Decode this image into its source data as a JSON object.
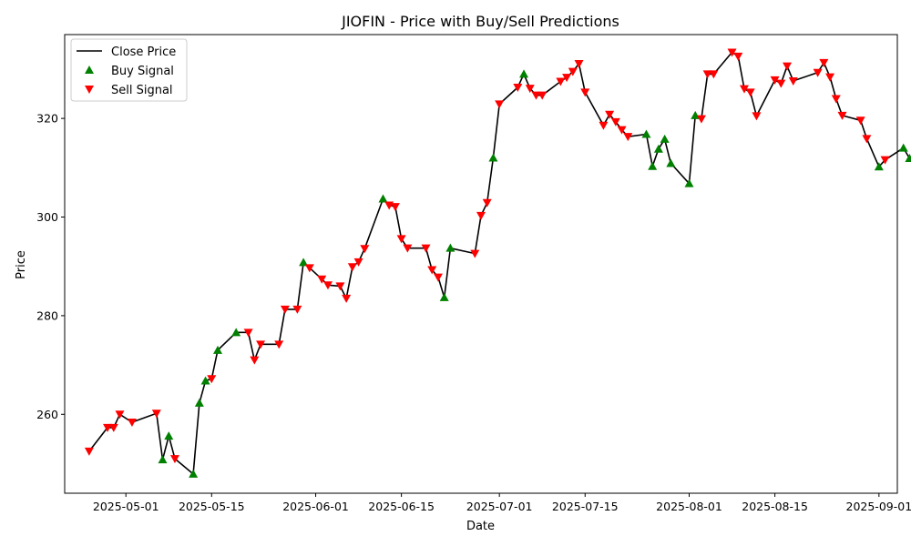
{
  "chart_data": {
    "type": "line",
    "title": "JIOFIN - Price with Buy/Sell Predictions",
    "xlabel": "Date",
    "ylabel": "Price",
    "xlim": [
      "2025-04-21",
      "2025-09-04"
    ],
    "ylim": [
      244,
      337
    ],
    "x_ticks": [
      "2025-05-01",
      "2025-05-15",
      "2025-06-01",
      "2025-06-15",
      "2025-07-01",
      "2025-07-15",
      "2025-08-01",
      "2025-08-15",
      "2025-09-01"
    ],
    "y_ticks": [
      260,
      280,
      300,
      320
    ],
    "grid": false,
    "legend_position": "upper-left",
    "legend": [
      "Close Price",
      "Buy Signal",
      "Sell Signal"
    ],
    "colors": {
      "line": "#000000",
      "buy": "#008000",
      "sell": "#ff0000"
    },
    "series": [
      {
        "name": "Close Price",
        "points": [
          [
            "2025-04-25",
            252.5
          ],
          [
            "2025-04-28",
            257.3
          ],
          [
            "2025-04-29",
            257.3
          ],
          [
            "2025-04-30",
            260.0
          ],
          [
            "2025-05-02",
            258.4
          ],
          [
            "2025-05-06",
            260.2
          ],
          [
            "2025-05-07",
            250.8
          ],
          [
            "2025-05-08",
            255.6
          ],
          [
            "2025-05-09",
            251.0
          ],
          [
            "2025-05-12",
            247.9
          ],
          [
            "2025-05-13",
            262.3
          ],
          [
            "2025-05-14",
            266.8
          ],
          [
            "2025-05-15",
            267.2
          ],
          [
            "2025-05-16",
            273.0
          ],
          [
            "2025-05-19",
            276.6
          ],
          [
            "2025-05-21",
            276.6
          ],
          [
            "2025-05-22",
            271.0
          ],
          [
            "2025-05-23",
            274.2
          ],
          [
            "2025-05-26",
            274.2
          ],
          [
            "2025-05-27",
            281.3
          ],
          [
            "2025-05-29",
            281.3
          ],
          [
            "2025-05-30",
            290.8
          ],
          [
            "2025-05-31",
            289.7
          ],
          [
            "2025-06-02",
            287.4
          ],
          [
            "2025-06-03",
            286.2
          ],
          [
            "2025-06-05",
            286.0
          ],
          [
            "2025-06-06",
            283.5
          ],
          [
            "2025-06-07",
            289.9
          ],
          [
            "2025-06-08",
            290.9
          ],
          [
            "2025-06-09",
            293.6
          ],
          [
            "2025-06-12",
            303.7
          ],
          [
            "2025-06-13",
            302.4
          ],
          [
            "2025-06-14",
            302.1
          ],
          [
            "2025-06-15",
            295.6
          ],
          [
            "2025-06-16",
            293.7
          ],
          [
            "2025-06-19",
            293.7
          ],
          [
            "2025-06-20",
            289.3
          ],
          [
            "2025-06-21",
            287.8
          ],
          [
            "2025-06-22",
            283.7
          ],
          [
            "2025-06-23",
            293.7
          ],
          [
            "2025-06-27",
            292.6
          ],
          [
            "2025-06-28",
            300.3
          ],
          [
            "2025-06-29",
            302.9
          ],
          [
            "2025-06-30",
            312.0
          ],
          [
            "2025-07-01",
            322.9
          ],
          [
            "2025-07-04",
            326.3
          ],
          [
            "2025-07-05",
            329.0
          ],
          [
            "2025-07-06",
            326.1
          ],
          [
            "2025-07-07",
            324.7
          ],
          [
            "2025-07-08",
            324.7
          ],
          [
            "2025-07-11",
            327.5
          ],
          [
            "2025-07-12",
            328.3
          ],
          [
            "2025-07-13",
            329.5
          ],
          [
            "2025-07-14",
            331.1
          ],
          [
            "2025-07-15",
            325.3
          ],
          [
            "2025-07-18",
            318.6
          ],
          [
            "2025-07-19",
            320.8
          ],
          [
            "2025-07-20",
            319.3
          ],
          [
            "2025-07-21",
            317.7
          ],
          [
            "2025-07-22",
            316.3
          ],
          [
            "2025-07-25",
            316.8
          ],
          [
            "2025-07-26",
            310.3
          ],
          [
            "2025-07-27",
            313.8
          ],
          [
            "2025-07-28",
            315.8
          ],
          [
            "2025-07-29",
            310.9
          ],
          [
            "2025-08-01",
            306.8
          ],
          [
            "2025-08-02",
            320.6
          ],
          [
            "2025-08-03",
            319.9
          ],
          [
            "2025-08-04",
            329.0
          ],
          [
            "2025-08-05",
            329.0
          ],
          [
            "2025-08-08",
            333.4
          ],
          [
            "2025-08-09",
            332.6
          ],
          [
            "2025-08-10",
            326.0
          ],
          [
            "2025-08-11",
            325.3
          ],
          [
            "2025-08-12",
            320.5
          ],
          [
            "2025-08-15",
            327.8
          ],
          [
            "2025-08-16",
            327.1
          ],
          [
            "2025-08-17",
            330.6
          ],
          [
            "2025-08-18",
            327.6
          ],
          [
            "2025-08-22",
            329.3
          ],
          [
            "2025-08-23",
            331.3
          ],
          [
            "2025-08-24",
            328.4
          ],
          [
            "2025-08-25",
            324.0
          ],
          [
            "2025-08-26",
            320.6
          ],
          [
            "2025-08-29",
            319.6
          ],
          [
            "2025-08-30",
            315.9
          ],
          [
            "2025-09-01",
            310.2
          ],
          [
            "2025-09-02",
            311.6
          ],
          [
            "2025-09-05",
            314.0
          ],
          [
            "2025-09-06",
            311.9
          ]
        ]
      },
      {
        "name": "Buy Signal",
        "points": [
          [
            "2025-05-07",
            250.8
          ],
          [
            "2025-05-08",
            255.6
          ],
          [
            "2025-05-12",
            247.9
          ],
          [
            "2025-05-13",
            262.3
          ],
          [
            "2025-05-14",
            266.8
          ],
          [
            "2025-05-16",
            273.0
          ],
          [
            "2025-05-19",
            276.6
          ],
          [
            "2025-05-30",
            290.8
          ],
          [
            "2025-06-12",
            303.7
          ],
          [
            "2025-06-22",
            283.7
          ],
          [
            "2025-06-23",
            293.7
          ],
          [
            "2025-06-30",
            312.0
          ],
          [
            "2025-07-05",
            329.0
          ],
          [
            "2025-07-25",
            316.8
          ],
          [
            "2025-07-26",
            310.3
          ],
          [
            "2025-07-27",
            313.8
          ],
          [
            "2025-07-28",
            315.8
          ],
          [
            "2025-07-29",
            310.9
          ],
          [
            "2025-08-01",
            306.8
          ],
          [
            "2025-08-02",
            320.6
          ],
          [
            "2025-09-01",
            310.2
          ],
          [
            "2025-09-05",
            314.0
          ],
          [
            "2025-09-06",
            311.9
          ]
        ]
      },
      {
        "name": "Sell Signal",
        "points": [
          [
            "2025-04-25",
            252.5
          ],
          [
            "2025-04-28",
            257.3
          ],
          [
            "2025-04-29",
            257.3
          ],
          [
            "2025-04-30",
            260.0
          ],
          [
            "2025-05-02",
            258.4
          ],
          [
            "2025-05-06",
            260.2
          ],
          [
            "2025-05-09",
            251.0
          ],
          [
            "2025-05-15",
            267.2
          ],
          [
            "2025-05-21",
            276.6
          ],
          [
            "2025-05-22",
            271.0
          ],
          [
            "2025-05-23",
            274.2
          ],
          [
            "2025-05-26",
            274.2
          ],
          [
            "2025-05-27",
            281.3
          ],
          [
            "2025-05-29",
            281.3
          ],
          [
            "2025-05-31",
            289.7
          ],
          [
            "2025-06-02",
            287.4
          ],
          [
            "2025-06-03",
            286.2
          ],
          [
            "2025-06-05",
            286.0
          ],
          [
            "2025-06-06",
            283.5
          ],
          [
            "2025-06-07",
            289.9
          ],
          [
            "2025-06-08",
            290.9
          ],
          [
            "2025-06-09",
            293.6
          ],
          [
            "2025-06-13",
            302.4
          ],
          [
            "2025-06-14",
            302.1
          ],
          [
            "2025-06-15",
            295.6
          ],
          [
            "2025-06-16",
            293.7
          ],
          [
            "2025-06-19",
            293.7
          ],
          [
            "2025-06-20",
            289.3
          ],
          [
            "2025-06-21",
            287.8
          ],
          [
            "2025-06-27",
            292.6
          ],
          [
            "2025-06-28",
            300.3
          ],
          [
            "2025-06-29",
            302.9
          ],
          [
            "2025-07-01",
            322.9
          ],
          [
            "2025-07-04",
            326.3
          ],
          [
            "2025-07-06",
            326.1
          ],
          [
            "2025-07-07",
            324.7
          ],
          [
            "2025-07-08",
            324.7
          ],
          [
            "2025-07-11",
            327.5
          ],
          [
            "2025-07-12",
            328.3
          ],
          [
            "2025-07-13",
            329.5
          ],
          [
            "2025-07-14",
            331.1
          ],
          [
            "2025-07-15",
            325.3
          ],
          [
            "2025-07-18",
            318.6
          ],
          [
            "2025-07-19",
            320.8
          ],
          [
            "2025-07-20",
            319.3
          ],
          [
            "2025-07-21",
            317.7
          ],
          [
            "2025-07-22",
            316.3
          ],
          [
            "2025-08-03",
            319.9
          ],
          [
            "2025-08-04",
            329.0
          ],
          [
            "2025-08-05",
            329.0
          ],
          [
            "2025-08-08",
            333.4
          ],
          [
            "2025-08-09",
            332.6
          ],
          [
            "2025-08-10",
            326.0
          ],
          [
            "2025-08-11",
            325.3
          ],
          [
            "2025-08-12",
            320.5
          ],
          [
            "2025-08-15",
            327.8
          ],
          [
            "2025-08-16",
            327.1
          ],
          [
            "2025-08-17",
            330.6
          ],
          [
            "2025-08-18",
            327.6
          ],
          [
            "2025-08-22",
            329.3
          ],
          [
            "2025-08-23",
            331.3
          ],
          [
            "2025-08-24",
            328.4
          ],
          [
            "2025-08-25",
            324.0
          ],
          [
            "2025-08-26",
            320.6
          ],
          [
            "2025-08-29",
            319.6
          ],
          [
            "2025-08-30",
            315.9
          ],
          [
            "2025-09-02",
            311.6
          ]
        ]
      }
    ]
  }
}
